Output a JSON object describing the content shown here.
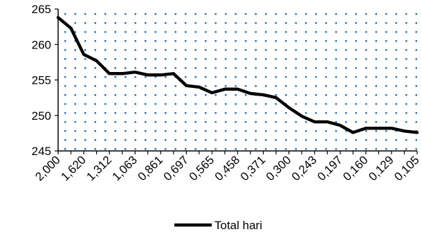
{
  "chart_data": {
    "type": "line",
    "title": "",
    "xlabel": "",
    "ylabel": "",
    "ylim": [
      245,
      265
    ],
    "yticks": [
      245,
      250,
      255,
      260,
      265
    ],
    "x_tick_labels": [
      "2,000",
      "1,620",
      "1,312",
      "1,063",
      "0,861",
      "0,697",
      "0,565",
      "0,458",
      "0,371",
      "0,300",
      "0,243",
      "0,197",
      "0,160",
      "0,129",
      "0,105"
    ],
    "grid": "dotted pattern fill",
    "legend_position": "bottom",
    "series": [
      {
        "name": "Total hari",
        "color": "#000000",
        "values": [
          263.8,
          262.3,
          258.6,
          257.7,
          255.9,
          255.9,
          256.1,
          255.7,
          255.7,
          255.9,
          254.2,
          254.0,
          253.2,
          253.7,
          253.7,
          253.1,
          252.9,
          252.5,
          251.1,
          249.9,
          249.1,
          249.1,
          248.6,
          247.6,
          248.2,
          248.2,
          248.2,
          247.8,
          247.6
        ]
      }
    ]
  },
  "colors": {
    "line": "#000000",
    "dot_pattern": "#2E75B6",
    "axis": "#000000"
  }
}
